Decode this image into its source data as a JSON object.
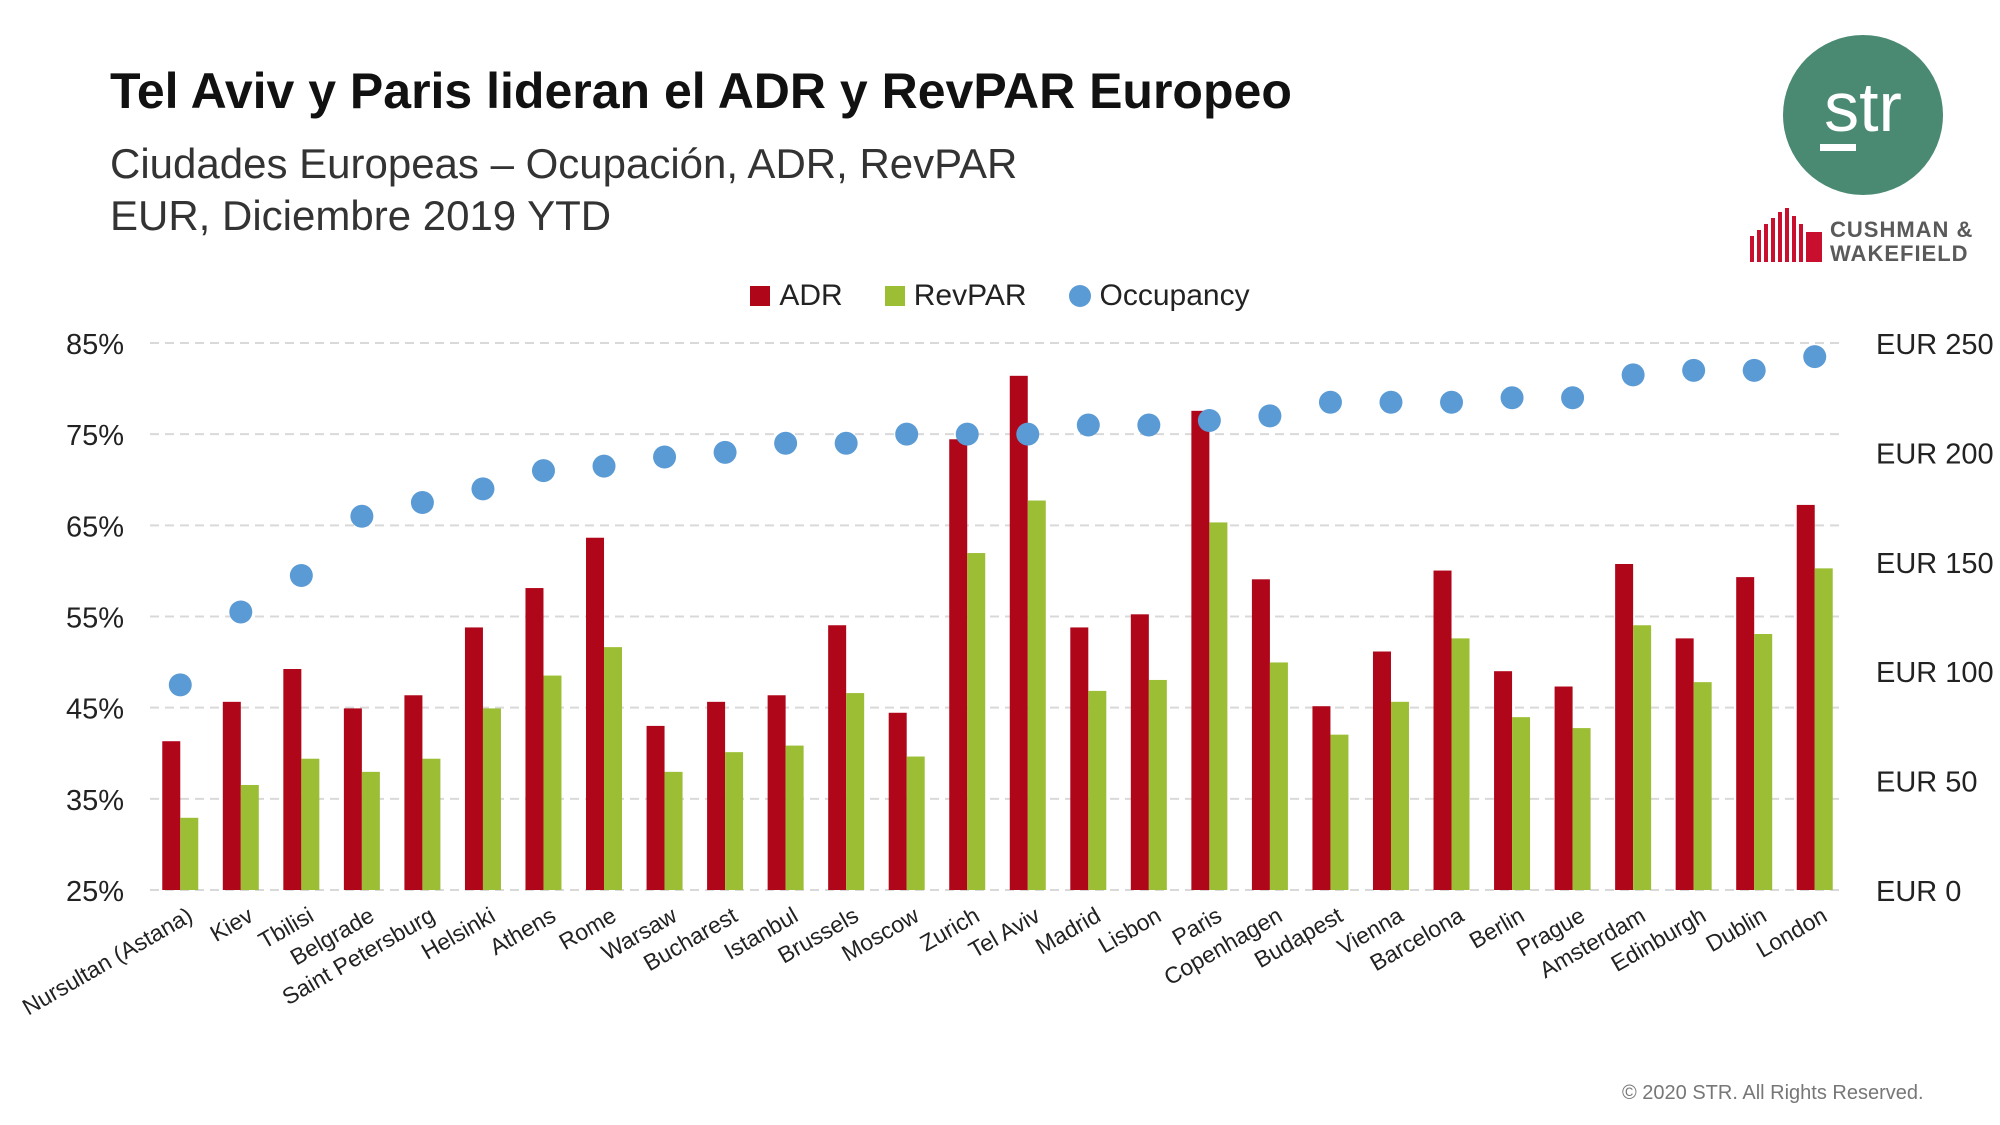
{
  "header": {
    "title": "Tel Aviv y Paris lideran el ADR y RevPAR Europeo",
    "subtitle_line1": "Ciudades Europeas – Ocupación, ADR, RevPAR",
    "subtitle_line2": "EUR, Diciembre 2019 YTD"
  },
  "logos": {
    "str_text": "str",
    "partner_line1": "CUSHMAN &",
    "partner_line2": "WAKEFIELD"
  },
  "footer": {
    "copyright": "© 2020 STR. All Rights Reserved."
  },
  "colors": {
    "adr": "#b0061a",
    "revpar": "#9cbe34",
    "occupancy": "#5b9bd5",
    "grid": "#d9d9d9",
    "logo_green": "#4a8a72",
    "partner_red": "#c8102e"
  },
  "chart_data": {
    "type": "bar",
    "categories": [
      "Nursultan (Astana)",
      "Kiev",
      "Tbilisi",
      "Belgrade",
      "Saint Petersburg",
      "Helsinki",
      "Athens",
      "Rome",
      "Warsaw",
      "Bucharest",
      "Istanbul",
      "Brussels",
      "Moscow",
      "Zurich",
      "Tel Aviv",
      "Madrid",
      "Lisbon",
      "Paris",
      "Copenhagen",
      "Budapest",
      "Vienna",
      "Barcelona",
      "Berlin",
      "Prague",
      "Amsterdam",
      "Edinburgh",
      "Dublin",
      "London"
    ],
    "series": [
      {
        "name": "ADR",
        "type": "bar",
        "axis": "right",
        "values": [
          68,
          86,
          101,
          83,
          89,
          120,
          138,
          161,
          75,
          86,
          89,
          121,
          81,
          206,
          235,
          120,
          126,
          219,
          142,
          84,
          109,
          146,
          100,
          93,
          149,
          115,
          143,
          176
        ]
      },
      {
        "name": "RevPAR",
        "type": "bar",
        "axis": "right",
        "values": [
          33,
          48,
          60,
          54,
          60,
          83,
          98,
          111,
          54,
          63,
          66,
          90,
          61,
          154,
          178,
          91,
          96,
          168,
          104,
          71,
          86,
          115,
          79,
          74,
          121,
          95,
          117,
          147
        ]
      },
      {
        "name": "Occupancy",
        "type": "scatter",
        "axis": "left",
        "values": [
          47.5,
          55.5,
          59.5,
          66,
          67.5,
          69,
          71,
          71.5,
          72.5,
          73,
          74,
          74,
          75,
          75,
          75,
          76,
          76,
          76.5,
          77,
          78.5,
          78.5,
          78.5,
          79,
          79,
          81.5,
          82,
          82,
          83.5
        ]
      }
    ],
    "y_left": {
      "ylim": [
        25,
        85
      ],
      "ticks": [
        "25%",
        "35%",
        "45%",
        "55%",
        "65%",
        "75%",
        "85%"
      ]
    },
    "y_right": {
      "ylim": [
        0,
        250
      ],
      "ticks": [
        "EUR 0",
        "EUR 50",
        "EUR 100",
        "EUR 150",
        "EUR 200",
        "EUR 250"
      ]
    },
    "grid": true,
    "legend_position": "top-center"
  }
}
